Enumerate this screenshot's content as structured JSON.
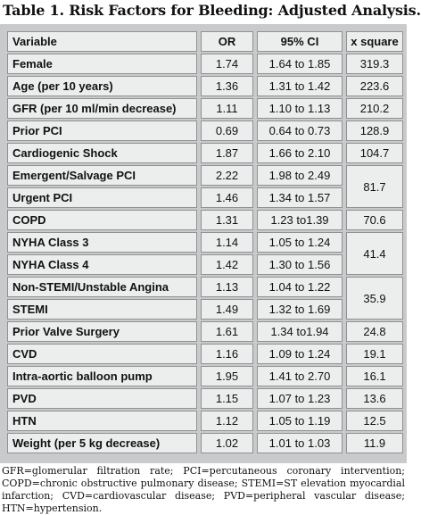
{
  "title": "Table 1. Risk Factors for Bleeding: Adjusted Analysis.",
  "headers": [
    "Variable",
    "OR",
    "95% CI",
    "x square"
  ],
  "rows": [
    {
      "var": "Female",
      "or": "1.74",
      "ci": "1.64 to 1.85",
      "xsq": "319.3"
    },
    {
      "var": "Age (per 10 years)",
      "or": "1.36",
      "ci": "1.31 to 1.42",
      "xsq": "223.6"
    },
    {
      "var": "GFR (per 10 ml/min decrease)",
      "or": "1.11",
      "ci": "1.10 to 1.13",
      "xsq": "210.2"
    },
    {
      "var": "Prior PCI",
      "or": "0.69",
      "ci": "0.64 to 0.73",
      "xsq": "128.9"
    },
    {
      "var": "Cardiogenic Shock",
      "or": "1.87",
      "ci": "1.66 to 2.10",
      "xsq": "104.7"
    },
    {
      "var": "Emergent/Salvage PCI",
      "or": "2.22",
      "ci": "1.98 to 2.49",
      "xsq": "81.7"
    },
    {
      "var": "Urgent PCI",
      "or": "1.46",
      "ci": "1.34 to 1.57",
      "xsq": null
    },
    {
      "var": "COPD",
      "or": "1.31",
      "ci": "1.23 to1.39",
      "xsq": "70.6"
    },
    {
      "var": "NYHA Class 3",
      "or": "1.14",
      "ci": "1.05 to 1.24",
      "xsq": "41.4"
    },
    {
      "var": "NYHA Class 4",
      "or": "1.42",
      "ci": "1.30 to 1.56",
      "xsq": null
    },
    {
      "var": "Non-STEMI/Unstable Angina",
      "or": "1.13",
      "ci": "1.04 to 1.22",
      "xsq": "35.9"
    },
    {
      "var": "STEMI",
      "or": "1.49",
      "ci": "1.32 to 1.69",
      "xsq": null
    },
    {
      "var": "Prior Valve Surgery",
      "or": "1.61",
      "ci": "1.34 to1.94",
      "xsq": "24.8"
    },
    {
      "var": "CVD",
      "or": "1.16",
      "ci": "1.09 to 1.24",
      "xsq": "19.1"
    },
    {
      "var": "Intra-aortic balloon pump",
      "or": "1.95",
      "ci": "1.41 to 2.70",
      "xsq": "16.1"
    },
    {
      "var": "PVD",
      "or": "1.15",
      "ci": "1.07 to 1.23",
      "xsq": "13.6"
    },
    {
      "var": "HTN",
      "or": "1.12",
      "ci": "1.05 to 1.19",
      "xsq": "12.5"
    },
    {
      "var": "Weight (per 5 kg decrease)",
      "or": "1.02",
      "ci": "1.01 to 1.03",
      "xsq": "11.9"
    }
  ],
  "footnote": "GFR=glomerular filtration rate; PCI=percutaneous coronary intervention; COPD=chronic obstructive pulmonary disease; STEMI=ST elevation myocardial infarction; CVD=cardiovascular disease; PVD=peripheral vascular disease; HTN=hypertension."
}
